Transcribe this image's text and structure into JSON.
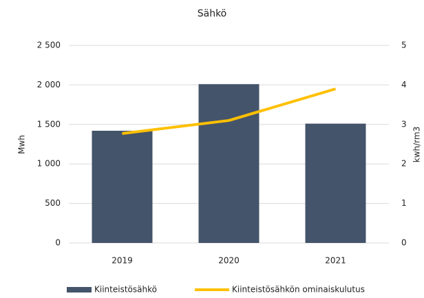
{
  "chart_data": {
    "type": "bar",
    "title": "Sähkö",
    "categories": [
      "2019",
      "2020",
      "2021"
    ],
    "series": [
      {
        "name": "Kiinteistösähkö",
        "type": "bar",
        "color": "#44546a",
        "values": [
          1420,
          2010,
          1510
        ]
      },
      {
        "name": "Kiinteistösähkön ominaiskulutus",
        "type": "line",
        "axis": "y2",
        "color": "#ffc000",
        "values": [
          2.77,
          3.1,
          3.9
        ]
      }
    ],
    "ylabel": "Mwh",
    "y2label": "kwh/rm3",
    "ylim": [
      0,
      2500
    ],
    "yticks": [
      0,
      500,
      {
        "value": 1000,
        "label": "1 000"
      },
      {
        "value": 1500,
        "label": "1 500"
      },
      {
        "value": 2000,
        "label": "2 000"
      },
      {
        "value": 2500,
        "label": "2 500"
      }
    ],
    "y2lim": [
      0,
      5
    ],
    "y2ticks": [
      0,
      1,
      2,
      3,
      4,
      5
    ],
    "grid": true,
    "legend": "bottom"
  }
}
